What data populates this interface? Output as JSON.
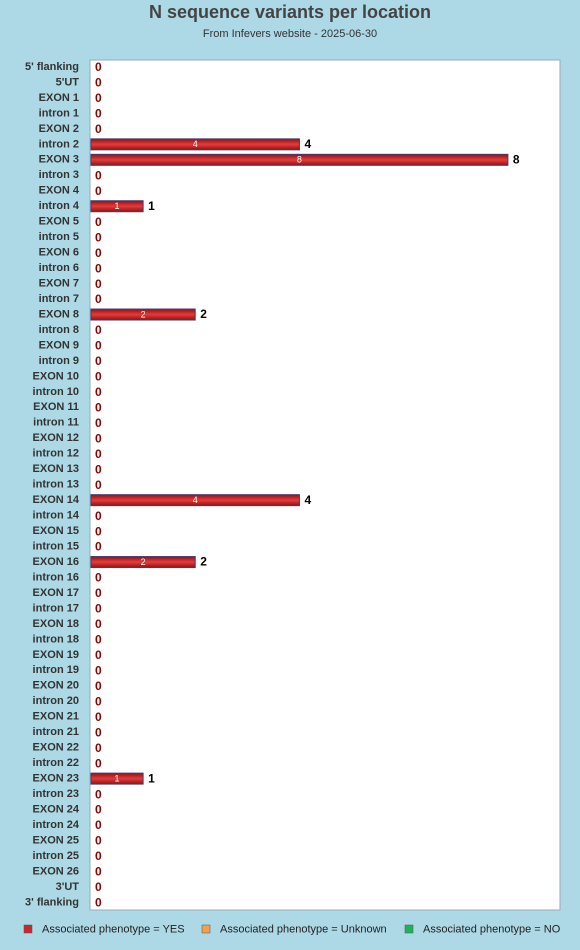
{
  "chart_data": {
    "type": "hbar",
    "title": "N sequence variants per location",
    "subtitle": "From Infevers website - 2025-06-30",
    "categories": [
      "5' flanking",
      "5'UT",
      "EXON 1",
      "intron 1",
      "EXON 2",
      "intron 2",
      "EXON 3",
      "intron 3",
      "EXON 4",
      "intron 4",
      "EXON 5",
      "intron 5",
      "EXON 6",
      "intron 6",
      "EXON 7",
      "intron 7",
      "EXON 8",
      "intron 8",
      "EXON 9",
      "intron 9",
      "EXON 10",
      "intron 10",
      "EXON 11",
      "intron 11",
      "EXON 12",
      "intron 12",
      "EXON 13",
      "intron 13",
      "EXON 14",
      "intron 14",
      "EXON 15",
      "intron 15",
      "EXON 16",
      "intron 16",
      "EXON 17",
      "intron 17",
      "EXON 18",
      "intron 18",
      "EXON 19",
      "intron 19",
      "EXON 20",
      "intron 20",
      "EXON 21",
      "intron 21",
      "EXON 22",
      "intron 22",
      "EXON 23",
      "intron 23",
      "EXON 24",
      "intron 24",
      "EXON 25",
      "intron 25",
      "EXON 26",
      "3'UT",
      "3' flanking"
    ],
    "series": [
      {
        "name": "Associated phenotype = YES",
        "color": "#c8282d",
        "values": [
          0,
          0,
          0,
          0,
          0,
          4,
          8,
          0,
          0,
          1,
          0,
          0,
          0,
          0,
          0,
          0,
          2,
          0,
          0,
          0,
          0,
          0,
          0,
          0,
          0,
          0,
          0,
          0,
          4,
          0,
          0,
          0,
          2,
          0,
          0,
          0,
          0,
          0,
          0,
          0,
          0,
          0,
          0,
          0,
          0,
          0,
          1,
          0,
          0,
          0,
          0,
          0,
          0,
          0,
          0
        ]
      }
    ],
    "legend": [
      {
        "name": "Associated phenotype = YES",
        "color": "#c8282d"
      },
      {
        "name": "Associated phenotype = Unknown",
        "color": "#f0a050"
      },
      {
        "name": "Associated phenotype = NO",
        "color": "#22b05a"
      }
    ],
    "xlim": [
      0,
      9
    ]
  }
}
